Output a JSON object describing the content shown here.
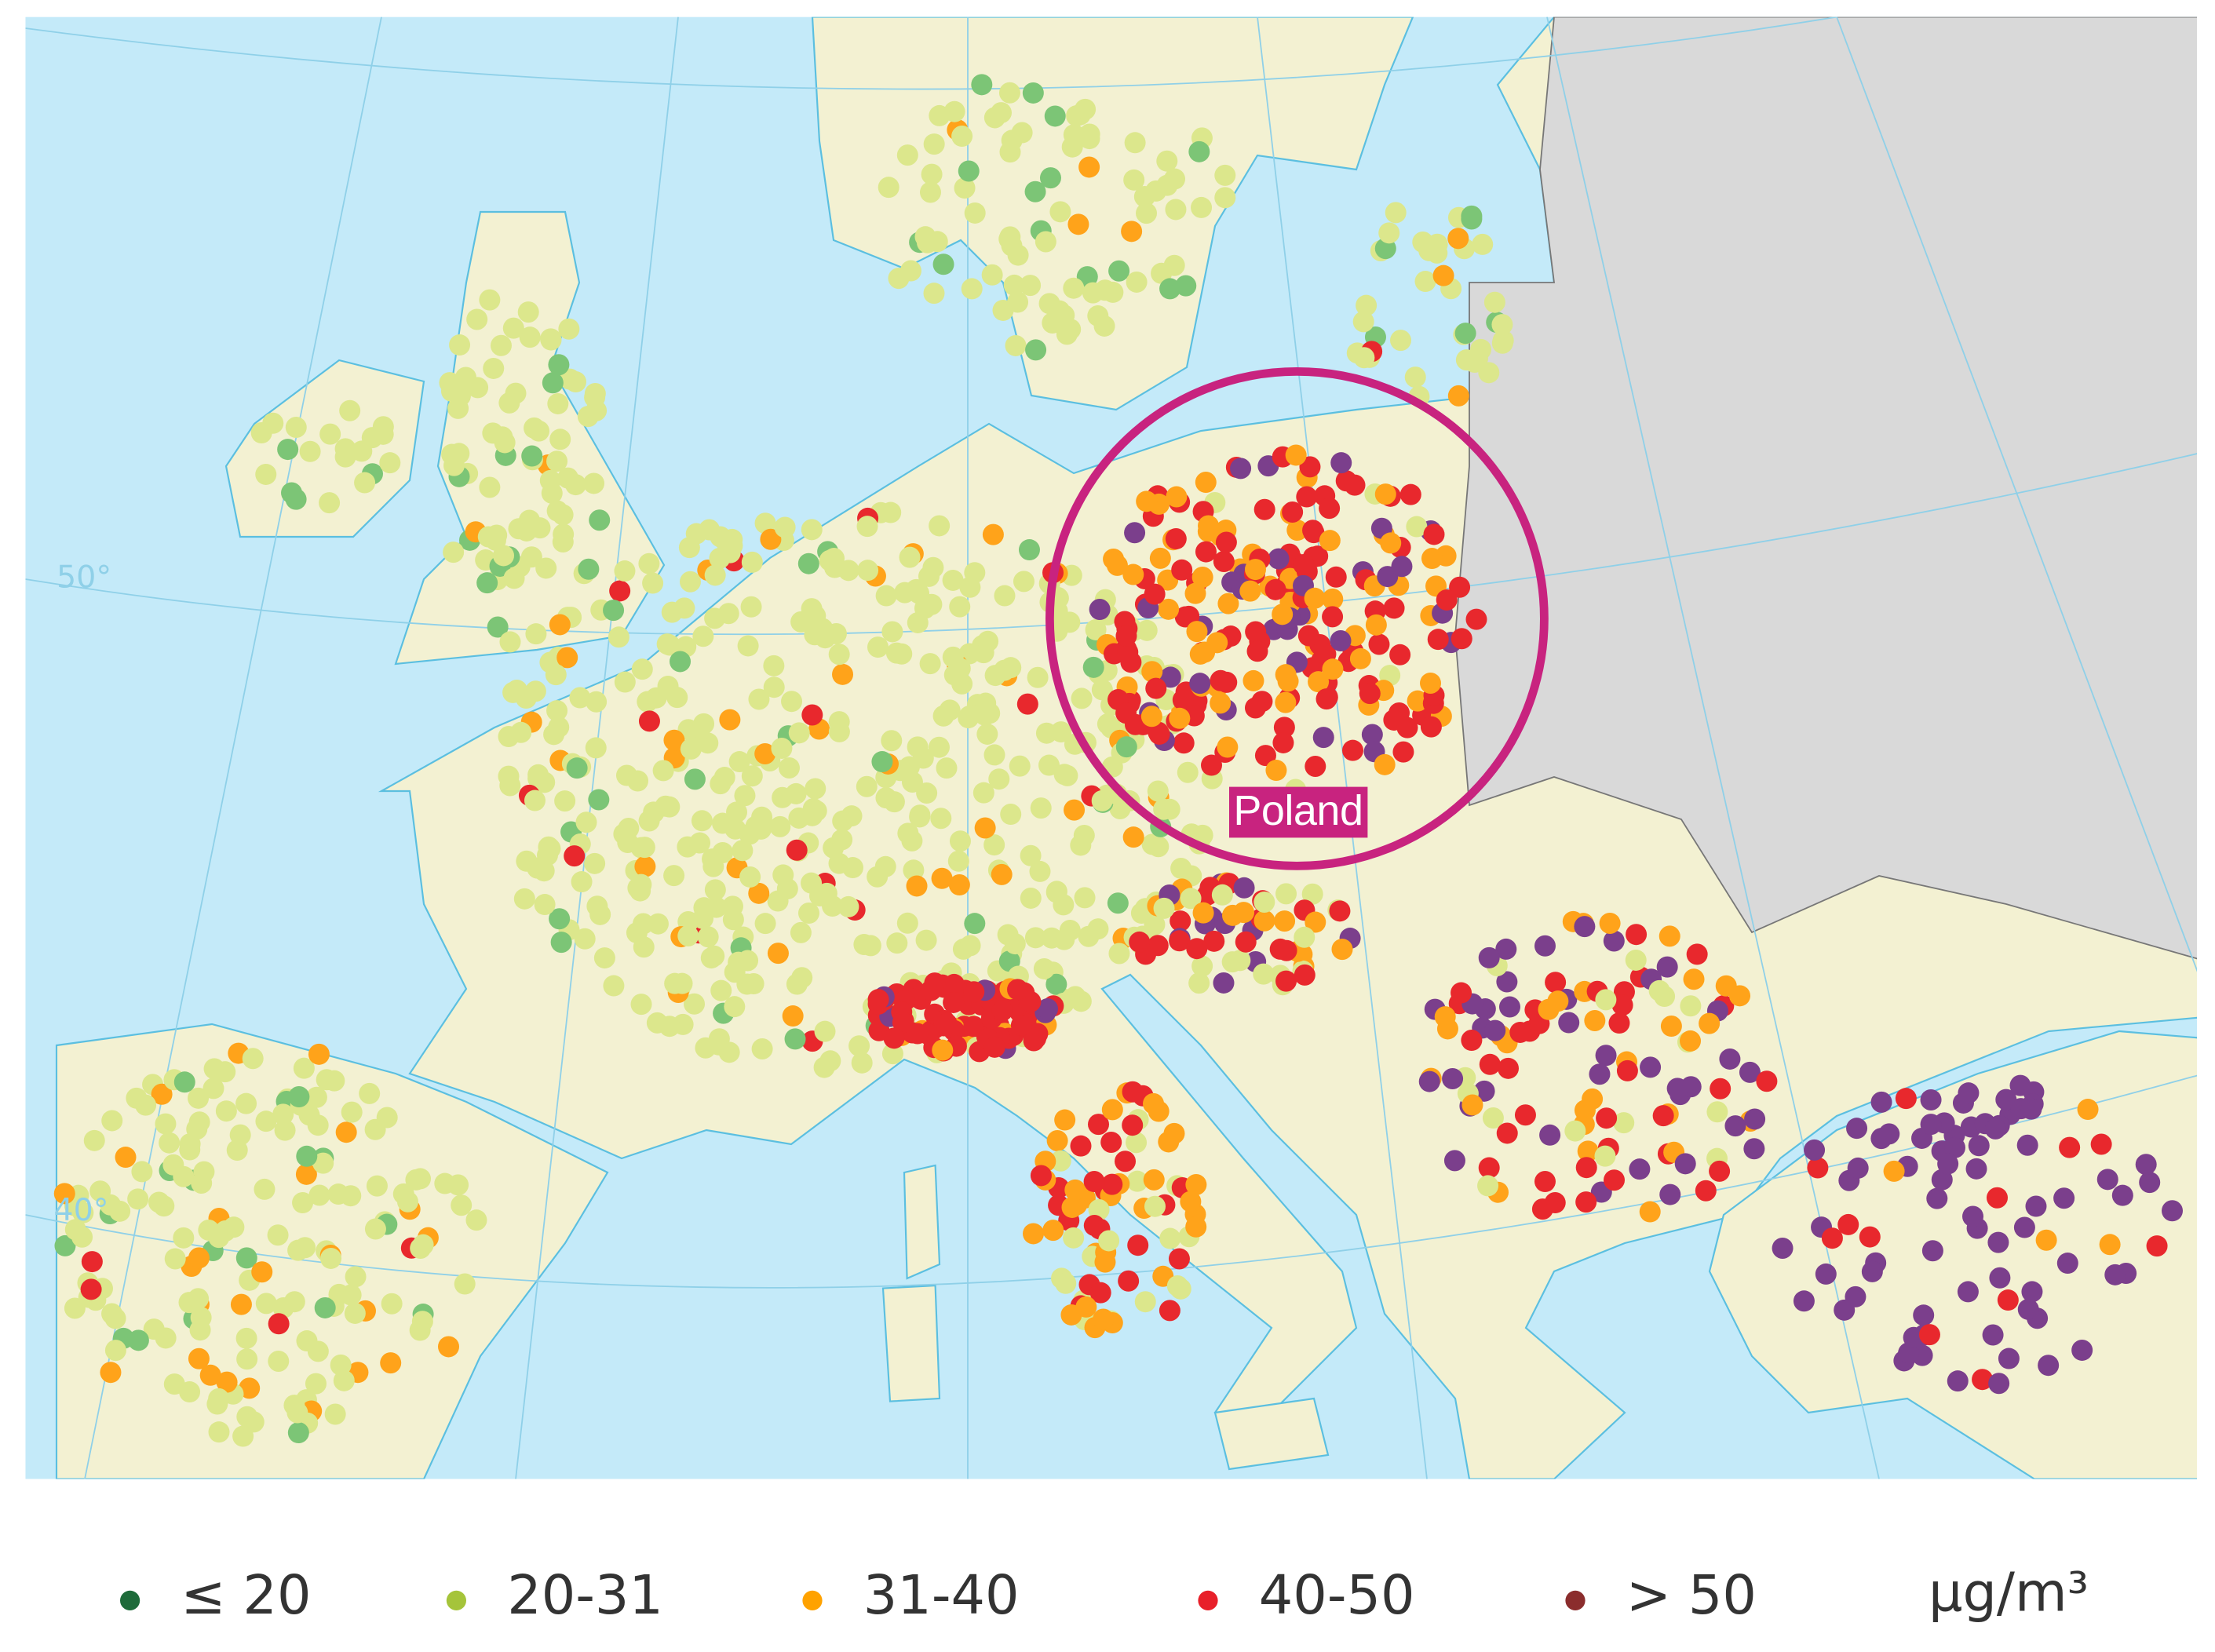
{
  "map": {
    "graticule_labels": [
      "50°",
      "40°"
    ],
    "country_label": "Poland"
  },
  "legend": {
    "items": [
      {
        "label": "≤ 20",
        "color": "#1e6b3a"
      },
      {
        "label": "20-31",
        "color": "#a5c43a"
      },
      {
        "label": "31-40",
        "color": "#ffa200"
      },
      {
        "label": "40-50",
        "color": "#e8202a"
      },
      {
        "label": "> 50",
        "color": "#8b2d2d"
      }
    ],
    "unit": "μg/m³"
  }
}
